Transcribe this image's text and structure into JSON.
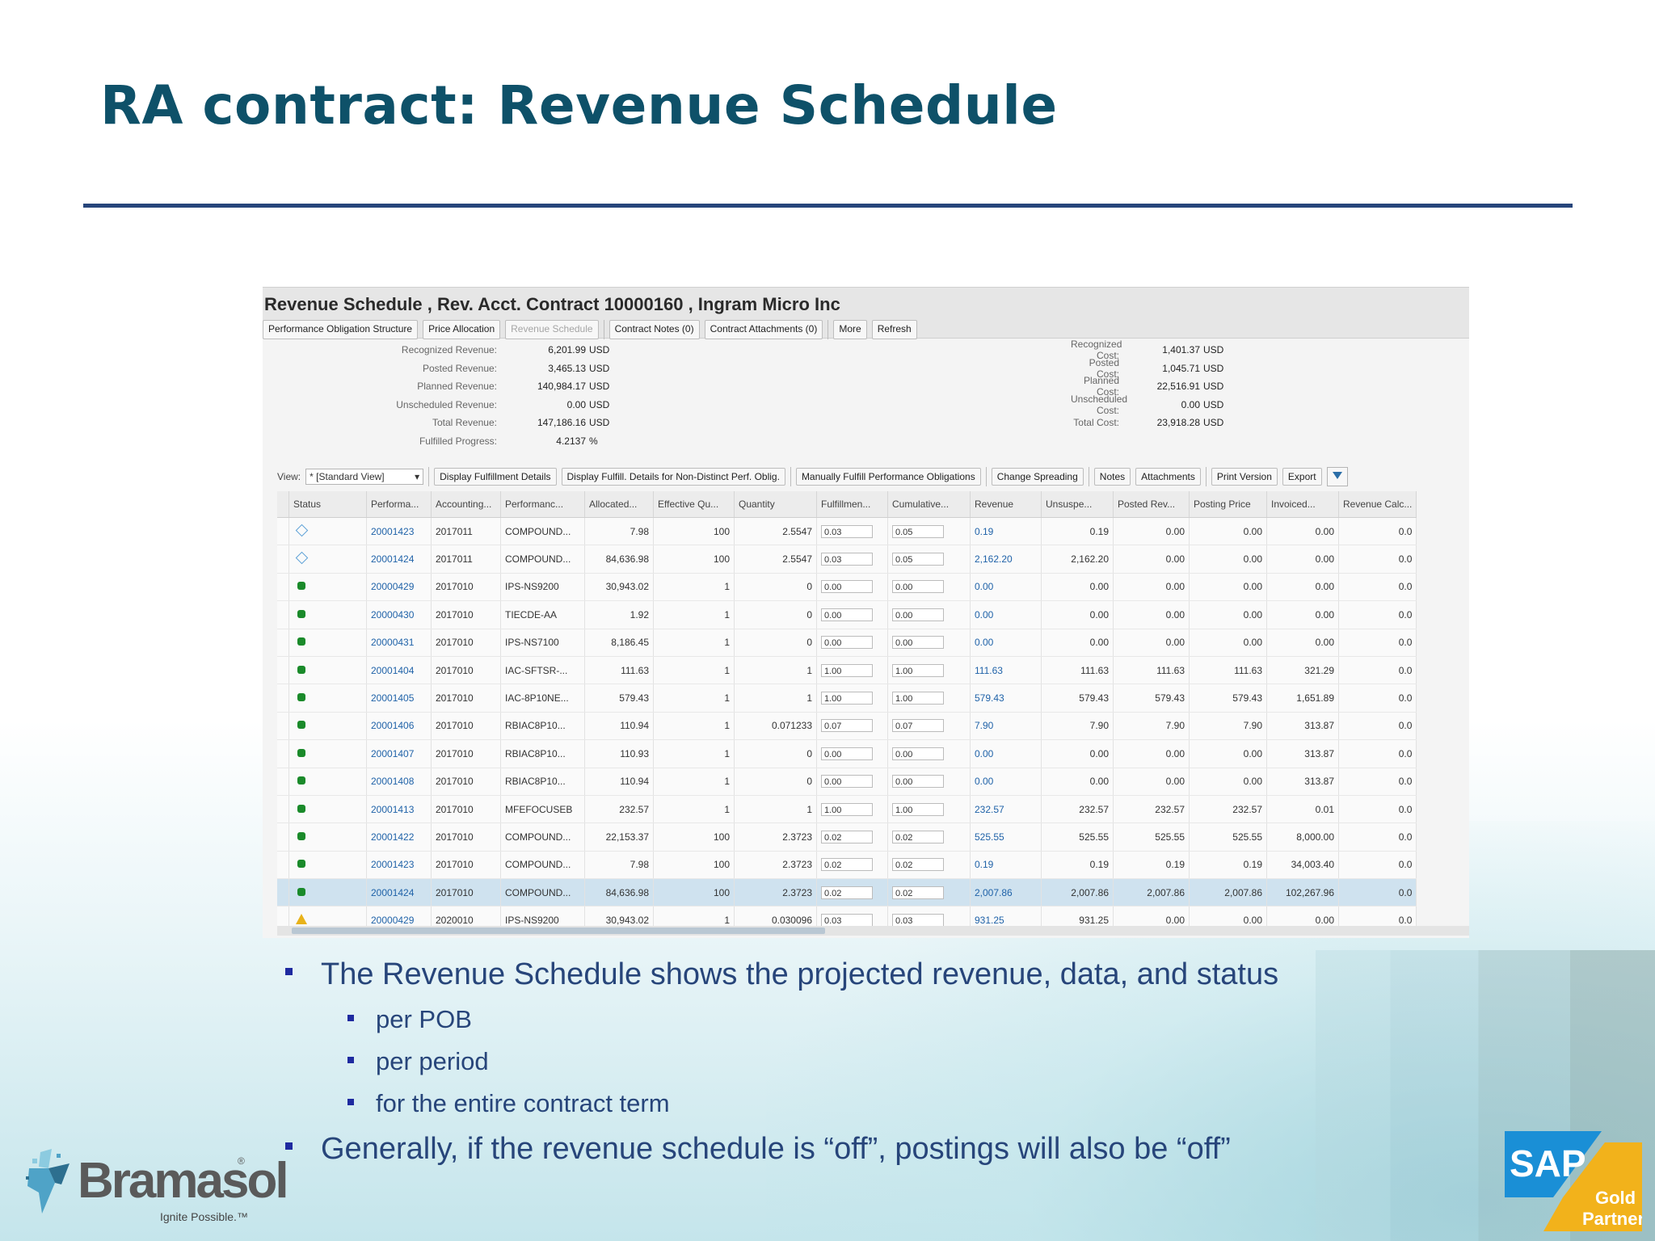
{
  "slide_title": "RA contract: Revenue Schedule",
  "screen": {
    "title": "Revenue Schedule , Rev. Acct. Contract 10000160 , Ingram Micro Inc",
    "toolbar": [
      {
        "label": "Performance Obligation Structure",
        "disabled": false
      },
      {
        "label": "Price Allocation",
        "disabled": false
      },
      {
        "label": "Revenue Schedule",
        "disabled": true
      },
      {
        "label": "Contract Notes (0)",
        "disabled": false
      },
      {
        "label": "Contract Attachments (0)",
        "disabled": false
      },
      {
        "label": "More",
        "disabled": false
      },
      {
        "label": "Refresh",
        "disabled": false
      }
    ],
    "summary_left": [
      {
        "label": "Recognized Revenue:",
        "value": "6,201.99",
        "unit": "USD"
      },
      {
        "label": "Posted Revenue:",
        "value": "3,465.13",
        "unit": "USD"
      },
      {
        "label": "Planned Revenue:",
        "value": "140,984.17",
        "unit": "USD"
      },
      {
        "label": "Unscheduled Revenue:",
        "value": "0.00",
        "unit": "USD"
      },
      {
        "label": "Total Revenue:",
        "value": "147,186.16",
        "unit": "USD"
      },
      {
        "label": "Fulfilled Progress:",
        "value": "4.2137",
        "unit": "%"
      }
    ],
    "summary_right": [
      {
        "label": "Recognized Cost:",
        "value": "1,401.37",
        "unit": "USD"
      },
      {
        "label": "Posted Cost:",
        "value": "1,045.71",
        "unit": "USD"
      },
      {
        "label": "Planned Cost:",
        "value": "22,516.91",
        "unit": "USD"
      },
      {
        "label": "Unscheduled Cost:",
        "value": "0.00",
        "unit": "USD"
      },
      {
        "label": "Total Cost:",
        "value": "23,918.28",
        "unit": "USD"
      }
    ],
    "table_toolbar": {
      "view_label": "View:",
      "view_value": "* [Standard View]",
      "buttons": [
        "Display Fulfillment Details",
        "Display Fulfill. Details for Non-Distinct Perf. Oblig.",
        "Manually Fulfill Performance Obligations",
        "Change Spreading",
        "Notes",
        "Attachments",
        "Print Version",
        "Export"
      ]
    },
    "columns": [
      "Status",
      "Performa...",
      "Accounting...",
      "Performanc...",
      "Allocated...",
      "Effective Qu...",
      "Quantity",
      "Fulfillmen...",
      "Cumulative...",
      "Revenue",
      "Unsuspe...",
      "Posted Rev...",
      "Posting Price",
      "Invoiced...",
      "Revenue Calc..."
    ],
    "rows": [
      {
        "status": "open",
        "pob": "20001423",
        "period": "2017011",
        "perf": "COMPOUND...",
        "alloc": "7.98",
        "effqty": "100",
        "qty": "2.5547",
        "fulfil": "0.03",
        "cumul": "0.05",
        "rev": "0.19",
        "unsusp": "0.19",
        "posted": "0.00",
        "postprice": "0.00",
        "invoiced": "0.00",
        "calc": "0.0"
      },
      {
        "status": "open",
        "pob": "20001424",
        "period": "2017011",
        "perf": "COMPOUND...",
        "alloc": "84,636.98",
        "effqty": "100",
        "qty": "2.5547",
        "fulfil": "0.03",
        "cumul": "0.05",
        "rev": "2,162.20",
        "unsusp": "2,162.20",
        "posted": "0.00",
        "postprice": "0.00",
        "invoiced": "0.00",
        "calc": "0.0"
      },
      {
        "status": "ok",
        "pob": "20000429",
        "period": "2017010",
        "perf": "IPS-NS9200",
        "alloc": "30,943.02",
        "effqty": "1",
        "qty": "0",
        "fulfil": "0.00",
        "cumul": "0.00",
        "rev": "0.00",
        "unsusp": "0.00",
        "posted": "0.00",
        "postprice": "0.00",
        "invoiced": "0.00",
        "calc": "0.0"
      },
      {
        "status": "ok",
        "pob": "20000430",
        "period": "2017010",
        "perf": "TIECDE-AA",
        "alloc": "1.92",
        "effqty": "1",
        "qty": "0",
        "fulfil": "0.00",
        "cumul": "0.00",
        "rev": "0.00",
        "unsusp": "0.00",
        "posted": "0.00",
        "postprice": "0.00",
        "invoiced": "0.00",
        "calc": "0.0"
      },
      {
        "status": "ok",
        "pob": "20000431",
        "period": "2017010",
        "perf": "IPS-NS7100",
        "alloc": "8,186.45",
        "effqty": "1",
        "qty": "0",
        "fulfil": "0.00",
        "cumul": "0.00",
        "rev": "0.00",
        "unsusp": "0.00",
        "posted": "0.00",
        "postprice": "0.00",
        "invoiced": "0.00",
        "calc": "0.0"
      },
      {
        "status": "ok",
        "pob": "20001404",
        "period": "2017010",
        "perf": "IAC-SFTSR-...",
        "alloc": "111.63",
        "effqty": "1",
        "qty": "1",
        "fulfil": "1.00",
        "cumul": "1.00",
        "rev": "111.63",
        "unsusp": "111.63",
        "posted": "111.63",
        "postprice": "111.63",
        "invoiced": "321.29",
        "calc": "0.0"
      },
      {
        "status": "ok",
        "pob": "20001405",
        "period": "2017010",
        "perf": "IAC-8P10NE...",
        "alloc": "579.43",
        "effqty": "1",
        "qty": "1",
        "fulfil": "1.00",
        "cumul": "1.00",
        "rev": "579.43",
        "unsusp": "579.43",
        "posted": "579.43",
        "postprice": "579.43",
        "invoiced": "1,651.89",
        "calc": "0.0"
      },
      {
        "status": "ok",
        "pob": "20001406",
        "period": "2017010",
        "perf": "RBIAC8P10...",
        "alloc": "110.94",
        "effqty": "1",
        "qty": "0.071233",
        "fulfil": "0.07",
        "cumul": "0.07",
        "rev": "7.90",
        "unsusp": "7.90",
        "posted": "7.90",
        "postprice": "7.90",
        "invoiced": "313.87",
        "calc": "0.0"
      },
      {
        "status": "ok",
        "pob": "20001407",
        "period": "2017010",
        "perf": "RBIAC8P10...",
        "alloc": "110.93",
        "effqty": "1",
        "qty": "0",
        "fulfil": "0.00",
        "cumul": "0.00",
        "rev": "0.00",
        "unsusp": "0.00",
        "posted": "0.00",
        "postprice": "0.00",
        "invoiced": "313.87",
        "calc": "0.0"
      },
      {
        "status": "ok",
        "pob": "20001408",
        "period": "2017010",
        "perf": "RBIAC8P10...",
        "alloc": "110.94",
        "effqty": "1",
        "qty": "0",
        "fulfil": "0.00",
        "cumul": "0.00",
        "rev": "0.00",
        "unsusp": "0.00",
        "posted": "0.00",
        "postprice": "0.00",
        "invoiced": "313.87",
        "calc": "0.0"
      },
      {
        "status": "ok",
        "pob": "20001413",
        "period": "2017010",
        "perf": "MFEFOCUSEB",
        "alloc": "232.57",
        "effqty": "1",
        "qty": "1",
        "fulfil": "1.00",
        "cumul": "1.00",
        "rev": "232.57",
        "unsusp": "232.57",
        "posted": "232.57",
        "postprice": "232.57",
        "invoiced": "0.01",
        "calc": "0.0"
      },
      {
        "status": "ok",
        "pob": "20001422",
        "period": "2017010",
        "perf": "COMPOUND...",
        "alloc": "22,153.37",
        "effqty": "100",
        "qty": "2.3723",
        "fulfil": "0.02",
        "cumul": "0.02",
        "rev": "525.55",
        "unsusp": "525.55",
        "posted": "525.55",
        "postprice": "525.55",
        "invoiced": "8,000.00",
        "calc": "0.0"
      },
      {
        "status": "ok",
        "pob": "20001423",
        "period": "2017010",
        "perf": "COMPOUND...",
        "alloc": "7.98",
        "effqty": "100",
        "qty": "2.3723",
        "fulfil": "0.02",
        "cumul": "0.02",
        "rev": "0.19",
        "unsusp": "0.19",
        "posted": "0.19",
        "postprice": "0.19",
        "invoiced": "34,003.40",
        "calc": "0.0"
      },
      {
        "status": "ok",
        "pob": "20001424",
        "period": "2017010",
        "perf": "COMPOUND...",
        "alloc": "84,636.98",
        "effqty": "100",
        "qty": "2.3723",
        "fulfil": "0.02",
        "cumul": "0.02",
        "rev": "2,007.86",
        "unsusp": "2,007.86",
        "posted": "2,007.86",
        "postprice": "2,007.86",
        "invoiced": "102,267.96",
        "calc": "0.0",
        "selected": true
      },
      {
        "status": "warn",
        "pob": "20000429",
        "period": "2020010",
        "perf": "IPS-NS9200",
        "alloc": "30,943.02",
        "effqty": "1",
        "qty": "0.030096",
        "fulfil": "0.03",
        "cumul": "0.03",
        "rev": "931.25",
        "unsusp": "931.25",
        "posted": "0.00",
        "postprice": "0.00",
        "invoiced": "0.00",
        "calc": "0.0"
      }
    ]
  },
  "bullets": [
    {
      "level": 1,
      "text": "The Revenue Schedule shows the projected revenue, data, and status"
    },
    {
      "level": 2,
      "text": "per POB"
    },
    {
      "level": 2,
      "text": "per period"
    },
    {
      "level": 2,
      "text": "for the entire contract term"
    },
    {
      "level": 1,
      "text": "Generally, if the revenue schedule is “off”, postings will also be “off”"
    }
  ],
  "logos": {
    "bramasol_name": "Bramasol",
    "bramasol_reg": "®",
    "bramasol_tagline": "Ignite Possible.™",
    "sap_text": "SAP",
    "sap_badge": [
      "Gold",
      "Partner"
    ]
  },
  "colors": {
    "title": "#0e5169",
    "bullet_text": "#27457a",
    "rule": "#27457a",
    "link": "#1f62a8"
  }
}
